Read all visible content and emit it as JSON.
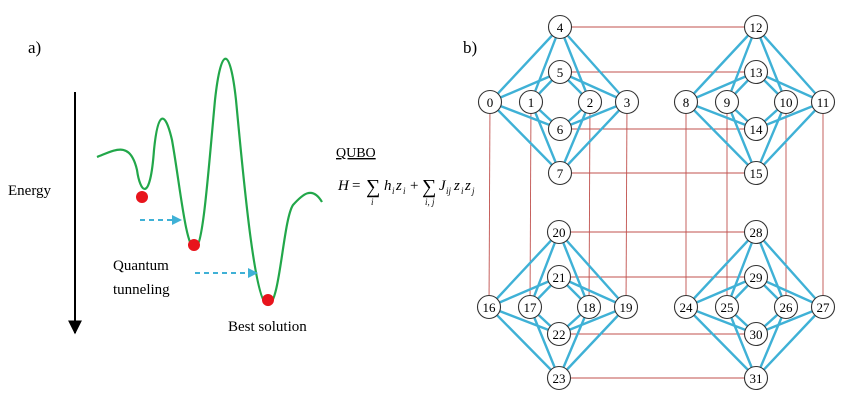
{
  "panel_a": {
    "label": "a)",
    "energy_label": "Energy",
    "tunneling_line1": "Quantum",
    "tunneling_line2": "tunneling",
    "best_label": "Best solution",
    "qubo_label": "QUBO",
    "equation": {
      "lhs": "H",
      "eq": "=",
      "sum1": "∑",
      "sub1": "i",
      "h": "h",
      "hi": "i",
      "z1": "z",
      "zi": "i",
      "plus": "+",
      "sum2": "∑",
      "sub2": "i, j",
      "J": "J",
      "ij": "ij",
      "z2": "z",
      "zi2": "i",
      "z3": "z",
      "zj": "j"
    },
    "colors": {
      "curve": "#22a74a",
      "ball": "#e8141c",
      "arrow": "#3fb1d6"
    }
  },
  "panel_b": {
    "label": "b)",
    "cells": [
      {
        "nodes": [
          "0",
          "1",
          "2",
          "3",
          "4",
          "5",
          "6",
          "7"
        ]
      },
      {
        "nodes": [
          "8",
          "9",
          "10",
          "11",
          "12",
          "13",
          "14",
          "15"
        ]
      },
      {
        "nodes": [
          "16",
          "17",
          "18",
          "19",
          "20",
          "21",
          "22",
          "23"
        ]
      },
      {
        "nodes": [
          "24",
          "25",
          "26",
          "27",
          "28",
          "29",
          "30",
          "31"
        ]
      }
    ],
    "colors": {
      "intra_edge": "#3fb1d6",
      "inter_edge": "#c0504d"
    }
  }
}
